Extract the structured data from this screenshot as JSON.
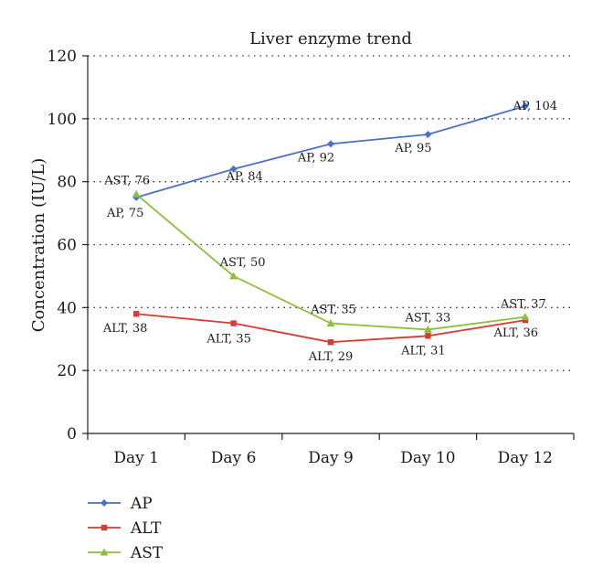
{
  "chart_data": {
    "type": "line",
    "title": "Liver enzyme trend",
    "xlabel": "",
    "ylabel": "Concentration (IU/L)",
    "ylim": [
      0,
      120
    ],
    "yticks": [
      0,
      20,
      40,
      60,
      80,
      100,
      120
    ],
    "grid": "dotted horizontal",
    "legend_position": "bottom-left",
    "categories": [
      "Day 1",
      "Day 6",
      "Day 9",
      "Day 10",
      "Day 12"
    ],
    "series": [
      {
        "name": "AP",
        "color": "#4a6fcc",
        "marker": "diamond",
        "values": [
          75,
          84,
          92,
          95,
          104
        ],
        "labels": [
          "AP, 75",
          "AP, 84",
          "AP, 92",
          "AP, 95",
          "AP, 104"
        ]
      },
      {
        "name": "ALT",
        "color": "#d93a34",
        "marker": "square",
        "values": [
          38,
          35,
          29,
          31,
          36
        ],
        "labels": [
          "ALT, 38",
          "ALT, 35",
          "ALT, 29",
          "ALT, 31",
          "ALT, 36"
        ]
      },
      {
        "name": "AST",
        "color": "#8cbf3c",
        "marker": "triangle",
        "values": [
          76,
          50,
          35,
          33,
          37
        ],
        "labels": [
          "AST, 76",
          "AST, 50",
          "AST, 35",
          "AST, 33",
          "AST, 37"
        ]
      }
    ]
  }
}
